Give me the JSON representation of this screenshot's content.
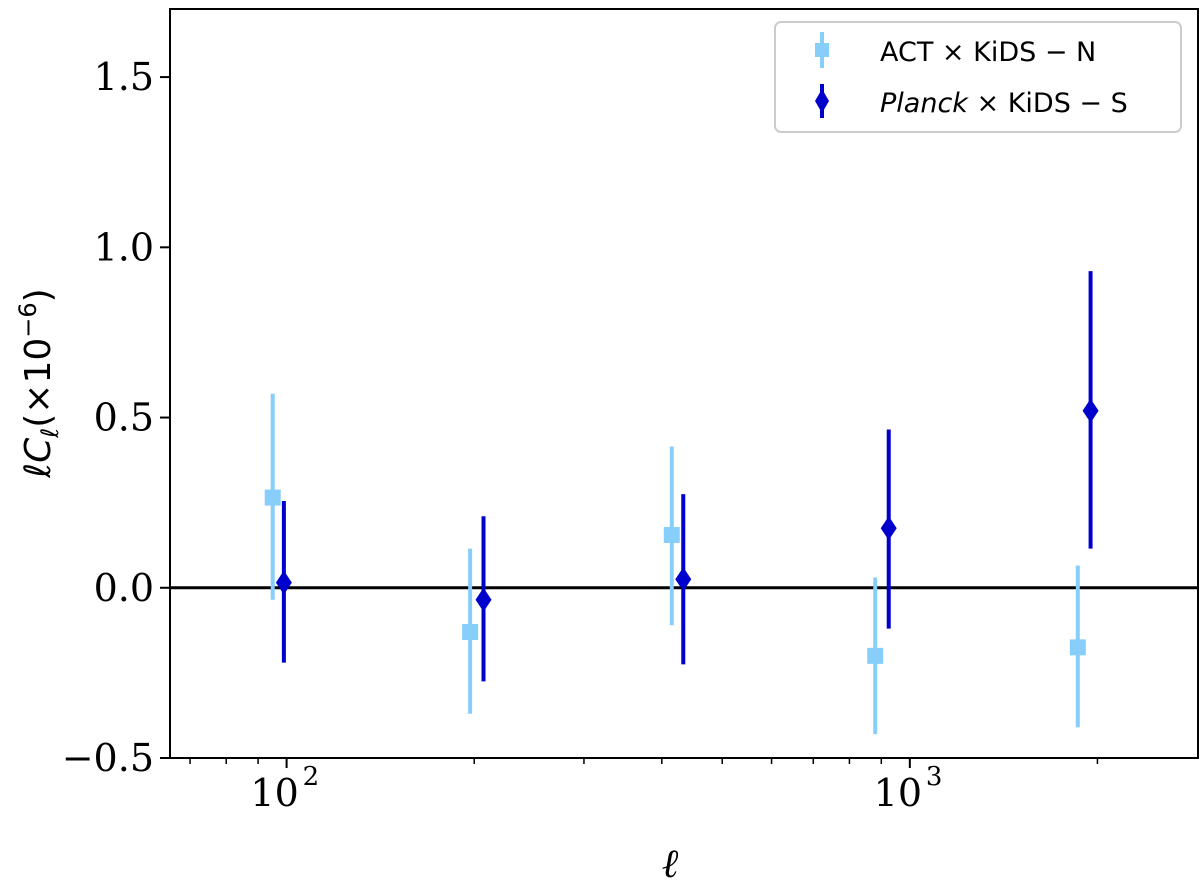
{
  "chart_data": {
    "type": "scatter",
    "title": "",
    "xlabel": "ℓ",
    "ylabel": {
      "prefix": "ℓC",
      "subscript": "ℓ",
      "suffix": "(×10",
      "exponent": "−6",
      "close": ")"
    },
    "xscale": "log",
    "xlim": [
      65,
      2900
    ],
    "ylim": [
      -0.5,
      1.7
    ],
    "yticks": [
      -0.5,
      0.0,
      0.5,
      1.0,
      1.5
    ],
    "ytick_labels": [
      "−0.5",
      "0.0",
      "0.5",
      "1.0",
      "1.5"
    ],
    "xticks": [
      {
        "value": 100,
        "base": "10",
        "exponent": "2"
      },
      {
        "value": 1000,
        "base": "10",
        "exponent": "3"
      }
    ],
    "zero_line": 0.0,
    "legend_position": "top-right",
    "series": [
      {
        "name": "ACT × KiDS − N",
        "legend_parts": {
          "first": "ACT",
          "first_italic": false,
          "rest": " × KiDS − N"
        },
        "marker": "square",
        "color": "#87CEFA",
        "x": [
          95,
          197,
          415,
          880,
          1860
        ],
        "y": [
          0.265,
          -0.13,
          0.155,
          -0.2,
          -0.175
        ],
        "yerr_low": [
          -0.035,
          -0.37,
          -0.11,
          -0.43,
          -0.41
        ],
        "yerr_high": [
          0.57,
          0.115,
          0.415,
          0.03,
          0.065
        ]
      },
      {
        "name": "Planck × KiDS − S",
        "legend_parts": {
          "first": "Planck",
          "first_italic": true,
          "rest": " × KiDS − S"
        },
        "marker": "diamond",
        "color": "#0000CD",
        "x": [
          99,
          207,
          433,
          925,
          1950
        ],
        "y": [
          0.015,
          -0.035,
          0.025,
          0.175,
          0.52
        ],
        "yerr_low": [
          -0.22,
          -0.275,
          -0.225,
          -0.12,
          0.115
        ],
        "yerr_high": [
          0.255,
          0.21,
          0.275,
          0.465,
          0.93
        ]
      }
    ]
  }
}
